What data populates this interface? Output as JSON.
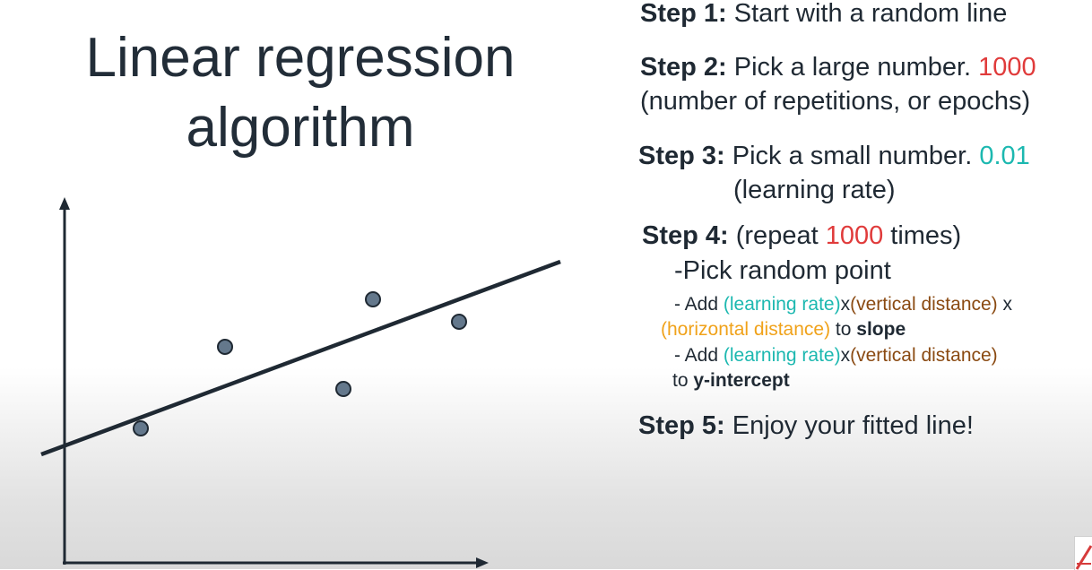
{
  "title": {
    "line1": "Linear regression",
    "line2": "algorithm"
  },
  "steps": {
    "step1": {
      "label": "Step 1:",
      "text": " Start with a random line"
    },
    "step2": {
      "label": "Step 2:",
      "text": " Pick a large number. ",
      "value": "1000",
      "line2": "(number of repetitions, or epochs)"
    },
    "step3": {
      "label": "Step 3:",
      "text": " Pick a small number. ",
      "value": "0.01",
      "line2": "(learning rate)"
    },
    "step4": {
      "label": "Step 4:",
      "text_pre": " (repeat ",
      "value": "1000",
      "text_post": " times)",
      "line2": "-Pick random point",
      "slope_rule": {
        "prefix": "- Add ",
        "learning_rate": "(learning rate)",
        "times1": "x",
        "vertical_distance": "(vertical distance)",
        "times2": " x",
        "horizontal_distance": "(horizontal distance)",
        "to": " to ",
        "target": "slope"
      },
      "intercept_rule": {
        "prefix": "- Add ",
        "learning_rate": "(learning rate)",
        "times1": "x",
        "vertical_distance": "(vertical distance)",
        "to": "to ",
        "target": "y-intercept"
      }
    },
    "step5": {
      "label": "Step 5:",
      "text": " Enjoy your fitted line!"
    }
  },
  "colors": {
    "value_red": "#e03b3b",
    "learning_rate_teal": "#1cb8b0",
    "vertical_brown": "#8a4a12",
    "horizontal_orange": "#f0a21a",
    "point_fill": "#64788c",
    "axis": "#1f2933"
  },
  "diagram": {
    "points": [
      "point-1",
      "point-2",
      "point-3",
      "point-4",
      "point-5"
    ],
    "line": "fitted-line"
  }
}
